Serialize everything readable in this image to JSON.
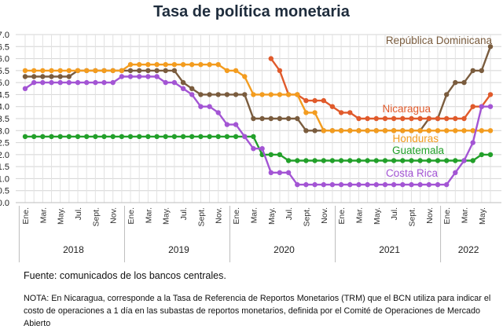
{
  "title": "Tasa de política monetaria",
  "source": "Fuente: comunicados de los bancos centrales.",
  "note": "NOTA: En Nicaragua, corresponde a la Tasa de Referencia de Reportos Monetarios (TRM) que el BCN utiliza para indicar el costo de operaciones a 1 día en las subastas de reportos monetarios, definida por el Comité de Operaciones de Mercado Abierto",
  "chart_data": {
    "type": "line",
    "title": "Tasa de política monetaria",
    "ylim": [
      0,
      7
    ],
    "ytick_labels": [
      "0.0",
      "0.5",
      "1.0",
      "1.5",
      "2.0",
      "2.5",
      "3.0",
      "3.5",
      "4.0",
      "4.5",
      "5.0",
      "5.5",
      "6.0",
      "6.5",
      "7.0"
    ],
    "grid": true,
    "month_tick_labels": [
      "Ene.",
      "Mar.",
      "May.",
      "Jul.",
      "Sept.",
      "Nov."
    ],
    "years": [
      "2018",
      "2019",
      "2020",
      "2021",
      "2022"
    ],
    "x": [
      "2018-01",
      "2018-02",
      "2018-03",
      "2018-04",
      "2018-05",
      "2018-06",
      "2018-07",
      "2018-08",
      "2018-09",
      "2018-10",
      "2018-11",
      "2018-12",
      "2019-01",
      "2019-02",
      "2019-03",
      "2019-04",
      "2019-05",
      "2019-06",
      "2019-07",
      "2019-08",
      "2019-09",
      "2019-10",
      "2019-11",
      "2019-12",
      "2020-01",
      "2020-02",
      "2020-03",
      "2020-04",
      "2020-05",
      "2020-06",
      "2020-07",
      "2020-08",
      "2020-09",
      "2020-10",
      "2020-11",
      "2020-12",
      "2021-01",
      "2021-02",
      "2021-03",
      "2021-04",
      "2021-05",
      "2021-06",
      "2021-07",
      "2021-08",
      "2021-09",
      "2021-10",
      "2021-11",
      "2021-12",
      "2022-01",
      "2022-02",
      "2022-03",
      "2022-04",
      "2022-05",
      "2022-06"
    ],
    "series": [
      {
        "name": "República Dominicana",
        "color": "#7a5c3e",
        "values": [
          5.25,
          5.25,
          5.25,
          5.25,
          5.25,
          5.25,
          5.5,
          5.5,
          5.5,
          5.5,
          5.5,
          5.5,
          5.5,
          5.5,
          5.5,
          5.5,
          5.5,
          5.5,
          5.0,
          4.75,
          4.5,
          4.5,
          4.5,
          4.5,
          4.5,
          4.5,
          3.5,
          3.5,
          3.5,
          3.5,
          3.5,
          3.5,
          3.0,
          3.0,
          3.0,
          3.0,
          3.0,
          3.0,
          3.0,
          3.0,
          3.0,
          3.0,
          3.0,
          3.0,
          3.0,
          3.0,
          3.5,
          3.5,
          4.5,
          5.0,
          5.0,
          5.5,
          5.5,
          6.5
        ]
      },
      {
        "name": "Nicaragua",
        "color": "#e05a2b",
        "values": [
          null,
          null,
          null,
          null,
          null,
          null,
          null,
          null,
          null,
          null,
          null,
          null,
          null,
          null,
          null,
          null,
          null,
          null,
          null,
          null,
          null,
          null,
          null,
          null,
          null,
          null,
          null,
          null,
          6.0,
          5.5,
          4.5,
          4.5,
          4.25,
          4.25,
          4.25,
          4.0,
          3.75,
          3.75,
          3.5,
          3.5,
          3.5,
          3.5,
          3.5,
          3.5,
          3.5,
          3.5,
          3.5,
          3.5,
          3.5,
          3.5,
          3.5,
          4.0,
          4.0,
          4.5
        ]
      },
      {
        "name": "Honduras",
        "color": "#f39c1f",
        "values": [
          5.5,
          5.5,
          5.5,
          5.5,
          5.5,
          5.5,
          5.5,
          5.5,
          5.5,
          5.5,
          5.5,
          5.5,
          5.75,
          5.75,
          5.75,
          5.75,
          5.75,
          5.75,
          5.75,
          5.75,
          5.75,
          5.75,
          5.75,
          5.5,
          5.5,
          5.25,
          4.5,
          4.5,
          4.5,
          4.5,
          4.5,
          4.5,
          3.75,
          3.75,
          3.0,
          3.0,
          3.0,
          3.0,
          3.0,
          3.0,
          3.0,
          3.0,
          3.0,
          3.0,
          3.0,
          3.0,
          3.0,
          3.0,
          3.0,
          3.0,
          3.0,
          3.0,
          3.0,
          3.0
        ]
      },
      {
        "name": "Guatemala",
        "color": "#22a02a",
        "values": [
          2.75,
          2.75,
          2.75,
          2.75,
          2.75,
          2.75,
          2.75,
          2.75,
          2.75,
          2.75,
          2.75,
          2.75,
          2.75,
          2.75,
          2.75,
          2.75,
          2.75,
          2.75,
          2.75,
          2.75,
          2.75,
          2.75,
          2.75,
          2.75,
          2.75,
          2.75,
          2.75,
          2.0,
          2.0,
          2.0,
          1.75,
          1.75,
          1.75,
          1.75,
          1.75,
          1.75,
          1.75,
          1.75,
          1.75,
          1.75,
          1.75,
          1.75,
          1.75,
          1.75,
          1.75,
          1.75,
          1.75,
          1.75,
          1.75,
          1.75,
          1.75,
          1.75,
          2.0,
          2.0
        ]
      },
      {
        "name": "Costa Rica",
        "color": "#a355d4",
        "values": [
          4.75,
          5.0,
          5.0,
          5.0,
          5.0,
          5.0,
          5.0,
          5.0,
          5.0,
          5.0,
          5.0,
          5.25,
          5.25,
          5.25,
          5.25,
          5.25,
          5.0,
          5.0,
          4.75,
          4.5,
          4.0,
          4.0,
          3.75,
          3.25,
          3.25,
          2.75,
          2.25,
          2.25,
          1.25,
          1.25,
          1.25,
          0.75,
          0.75,
          0.75,
          0.75,
          0.75,
          0.75,
          0.75,
          0.75,
          0.75,
          0.75,
          0.75,
          0.75,
          0.75,
          0.75,
          0.75,
          0.75,
          0.75,
          0.75,
          1.25,
          1.75,
          2.5,
          4.0,
          4.0
        ]
      }
    ]
  }
}
